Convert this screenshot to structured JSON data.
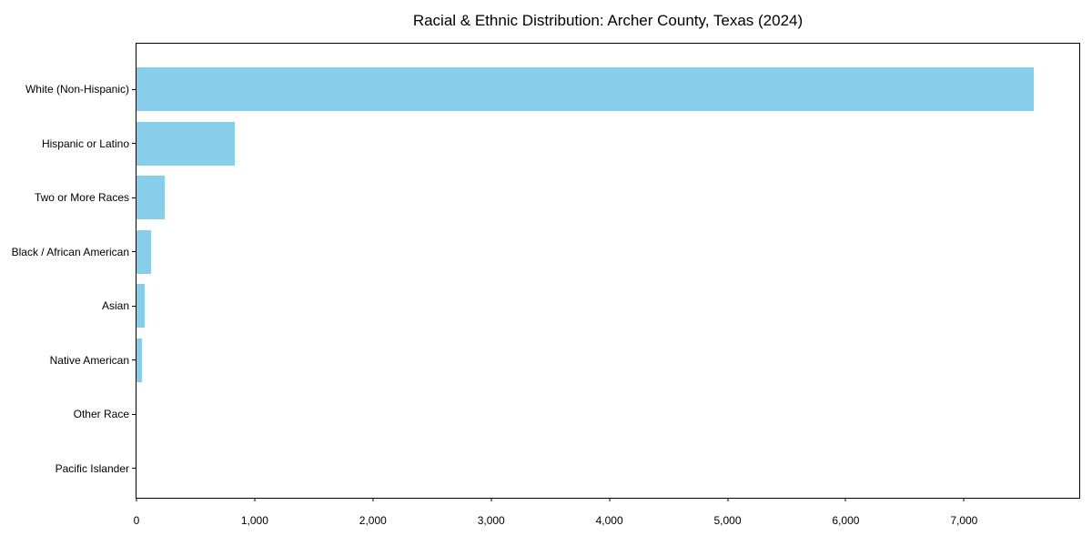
{
  "title": "Racial & Ethnic Distribution: Archer County, Texas (2024)",
  "colors": {
    "bar": "#87CEEB",
    "axis": "#000000",
    "background": "#ffffff",
    "text": "#000000"
  },
  "chart_data": {
    "type": "bar",
    "orientation": "horizontal",
    "title": "Racial & Ethnic Distribution: Archer County, Texas (2024)",
    "categories": [
      "White (Non-Hispanic)",
      "Hispanic or Latino",
      "Two or More Races",
      "Black / African American",
      "Asian",
      "Native American",
      "Other Race",
      "Pacific Islander"
    ],
    "values": [
      7590,
      833,
      235,
      127,
      70,
      46,
      0,
      0
    ],
    "bar_color": "#87CEEB",
    "xlabel": "",
    "ylabel": "",
    "xlim": [
      0,
      7975
    ],
    "xticks": [
      0,
      1000,
      2000,
      3000,
      4000,
      5000,
      6000,
      7000
    ],
    "xtick_labels": [
      "0",
      "1,000",
      "2,000",
      "3,000",
      "4,000",
      "5,000",
      "6,000",
      "7,000"
    ],
    "grid": false,
    "legend": false
  }
}
